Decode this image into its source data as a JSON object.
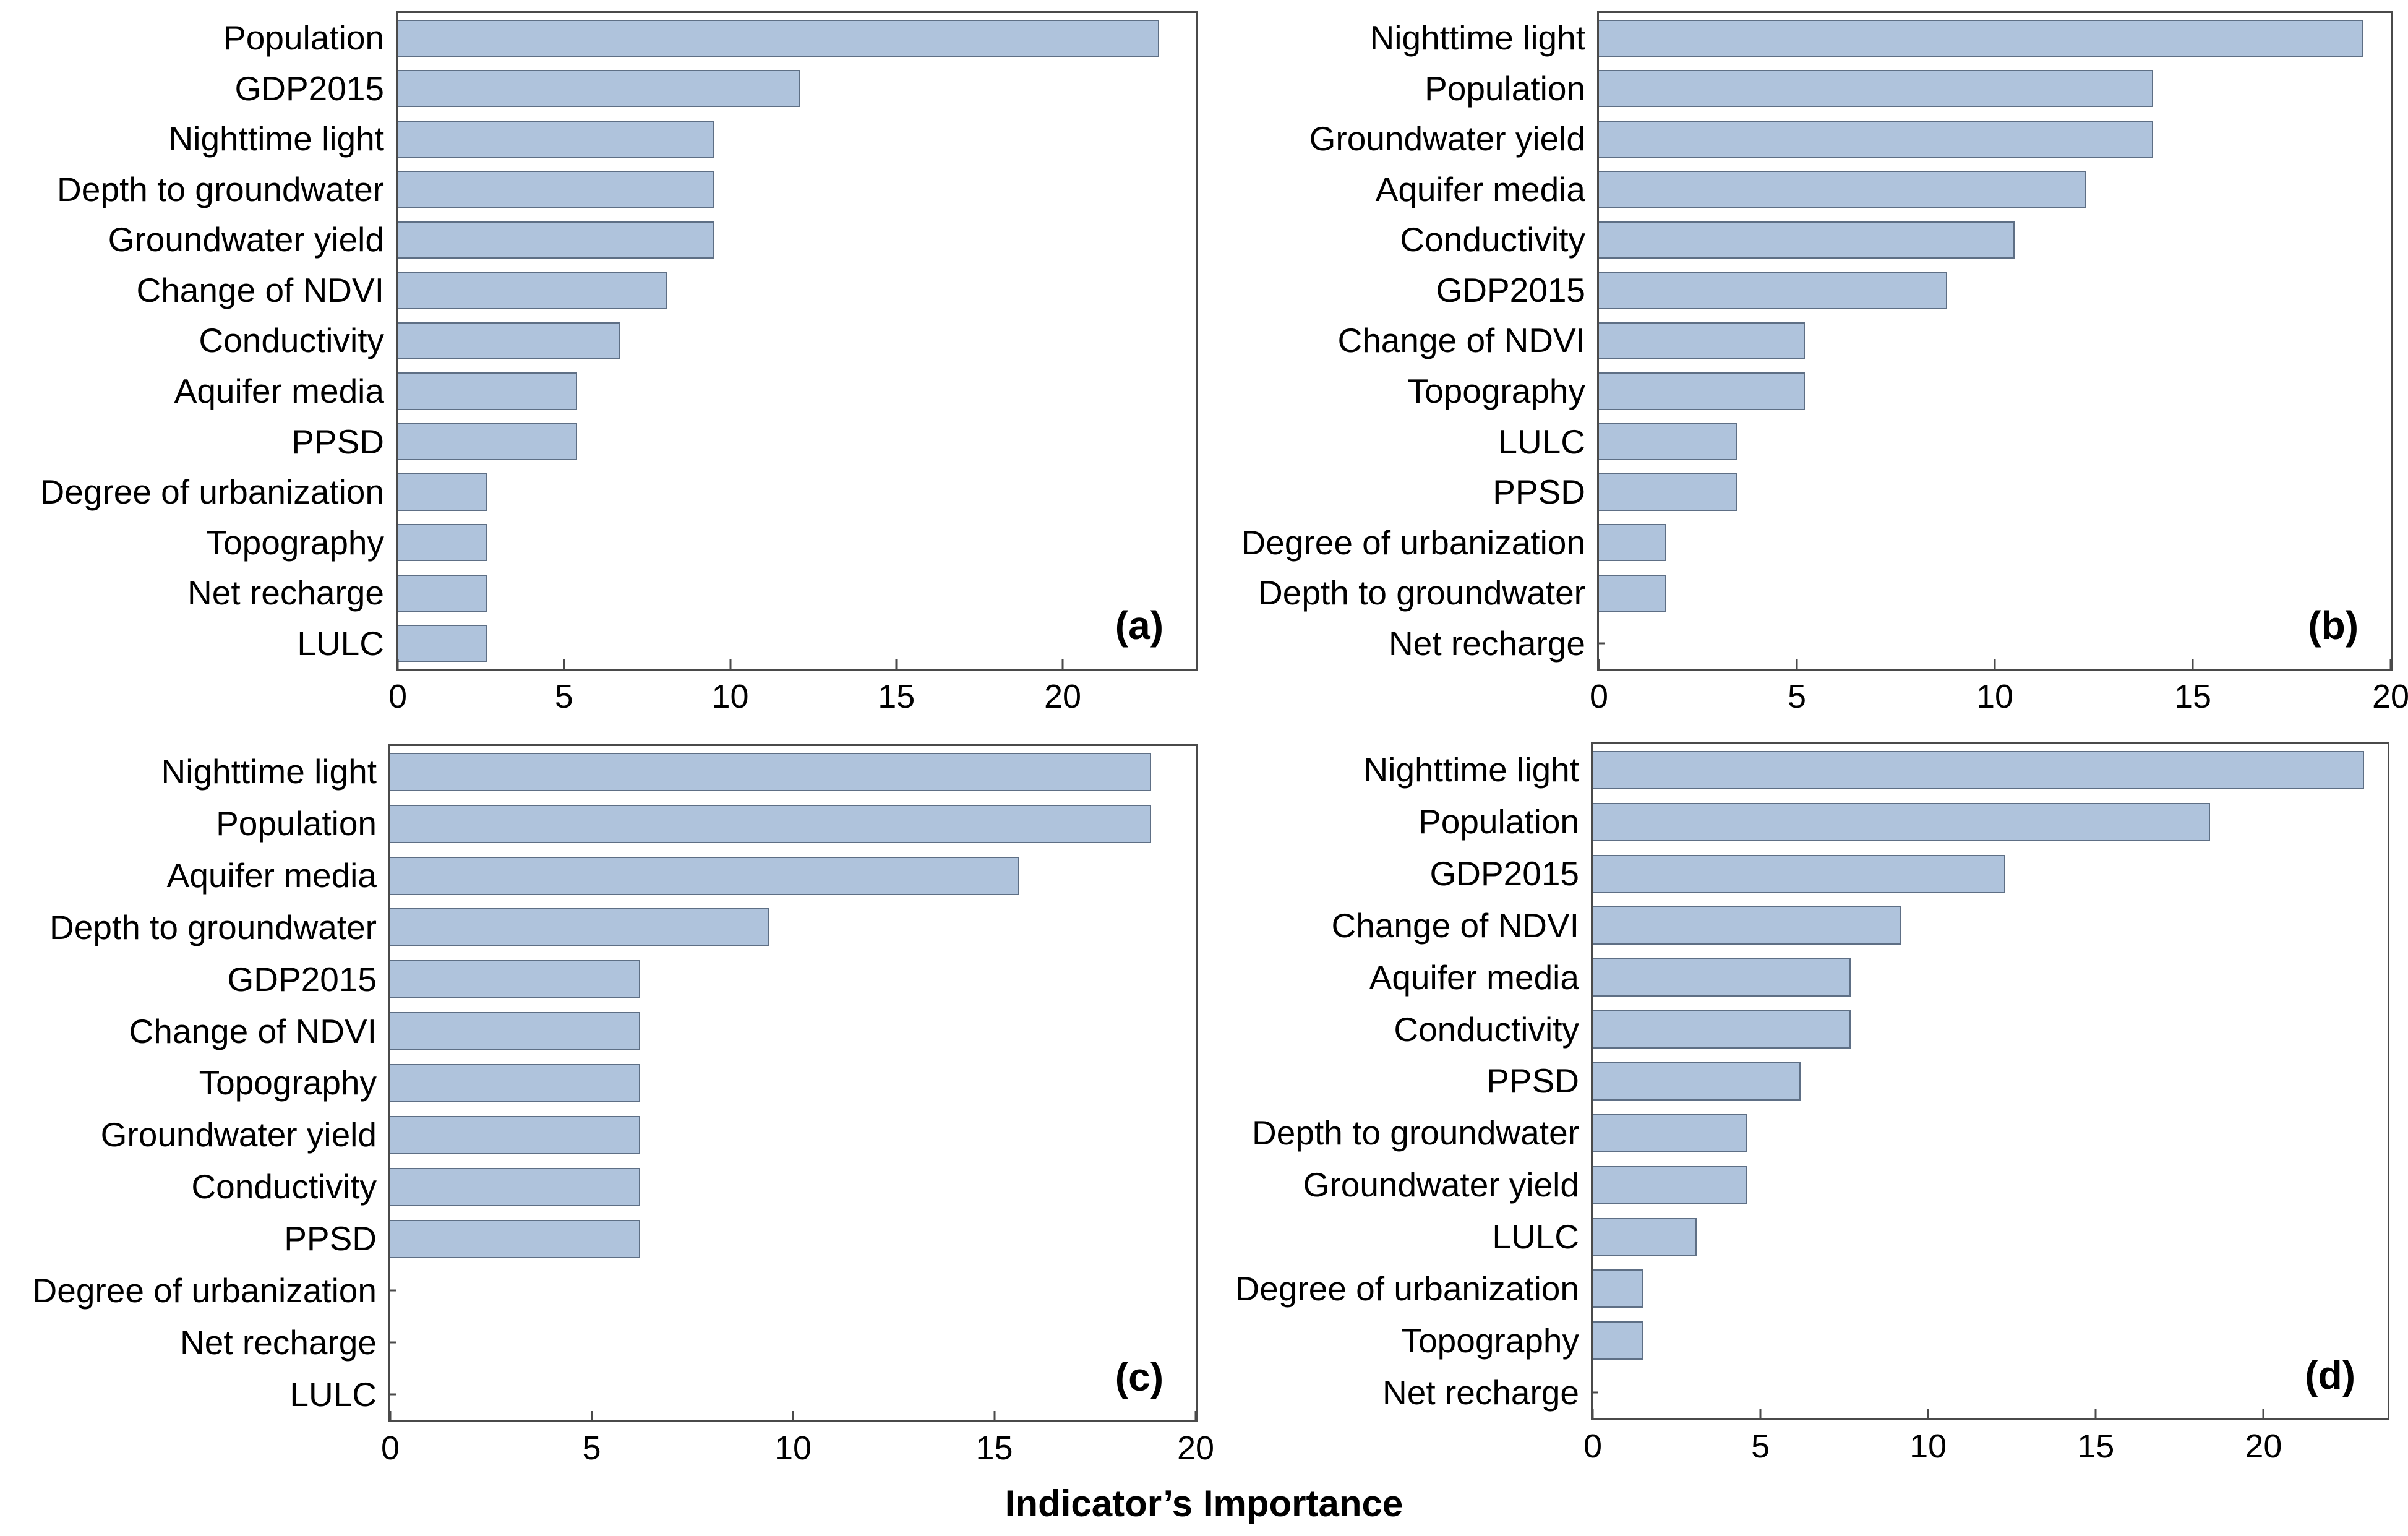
{
  "figure": {
    "xlabel": "Indicator’s Importance",
    "colors": {
      "bar_fill": "#afc3dc",
      "bar_border": "#5e6f85",
      "axis": "#4a4a4a",
      "text": "#000000"
    }
  },
  "chart_data": [
    {
      "id": "a",
      "panel_label": "(a)",
      "type": "bar",
      "orientation": "horizontal",
      "categories": [
        "Population",
        "GDP2015",
        "Nighttime light",
        "Depth to groundwater",
        "Groundwater yield",
        "Change of NDVI",
        "Conductivity",
        "Aquifer media",
        "PPSD",
        "Degree of urbanization",
        "Topography",
        "Net recharge",
        "LULC"
      ],
      "values": [
        22.9,
        12.1,
        9.5,
        9.5,
        9.5,
        8.1,
        6.7,
        5.4,
        5.4,
        2.7,
        2.7,
        2.7,
        2.7
      ],
      "xlim": [
        0,
        24
      ],
      "xticks": [
        0,
        5,
        10,
        15,
        20
      ],
      "grid": false,
      "legend": "none"
    },
    {
      "id": "b",
      "panel_label": "(b)",
      "type": "bar",
      "orientation": "horizontal",
      "categories": [
        "Nighttime light",
        "Population",
        "Groundwater yield",
        "Aquifer media",
        "Conductivity",
        "GDP2015",
        "Change of NDVI",
        "Topography",
        "LULC",
        "PPSD",
        "Degree of urbanization",
        "Depth to groundwater",
        "Net recharge"
      ],
      "values": [
        19.3,
        14.0,
        14.0,
        12.3,
        10.5,
        8.8,
        5.2,
        5.2,
        3.5,
        3.5,
        1.7,
        1.7,
        0
      ],
      "xlim": [
        0,
        20
      ],
      "xticks": [
        0,
        5,
        10,
        15,
        20
      ],
      "grid": false,
      "legend": "none"
    },
    {
      "id": "c",
      "panel_label": "(c)",
      "type": "bar",
      "orientation": "horizontal",
      "categories": [
        "Nighttime light",
        "Population",
        "Aquifer media",
        "Depth to groundwater",
        "GDP2015",
        "Change of NDVI",
        "Topography",
        "Groundwater yield",
        "Conductivity",
        "PPSD",
        "Degree of urbanization",
        "Net recharge",
        "LULC"
      ],
      "values": [
        18.9,
        18.9,
        15.6,
        9.4,
        6.2,
        6.2,
        6.2,
        6.2,
        6.2,
        6.2,
        0,
        0,
        0
      ],
      "xlim": [
        0,
        20
      ],
      "xticks": [
        0,
        5,
        10,
        15,
        20
      ],
      "grid": false,
      "legend": "none"
    },
    {
      "id": "d",
      "panel_label": "(d)",
      "type": "bar",
      "orientation": "horizontal",
      "categories": [
        "Nighttime light",
        "Population",
        "GDP2015",
        "Change of NDVI",
        "Aquifer media",
        "Conductivity",
        "PPSD",
        "Depth to groundwater",
        "Groundwater yield",
        "LULC",
        "Degree of urbanization",
        "Topography",
        "Net recharge"
      ],
      "values": [
        23.0,
        18.4,
        12.3,
        9.2,
        7.7,
        7.7,
        6.2,
        4.6,
        4.6,
        3.1,
        1.5,
        1.5,
        0
      ],
      "xlim": [
        0,
        23.7
      ],
      "xticks": [
        0,
        5,
        10,
        15,
        20
      ],
      "grid": false,
      "legend": "none"
    }
  ]
}
